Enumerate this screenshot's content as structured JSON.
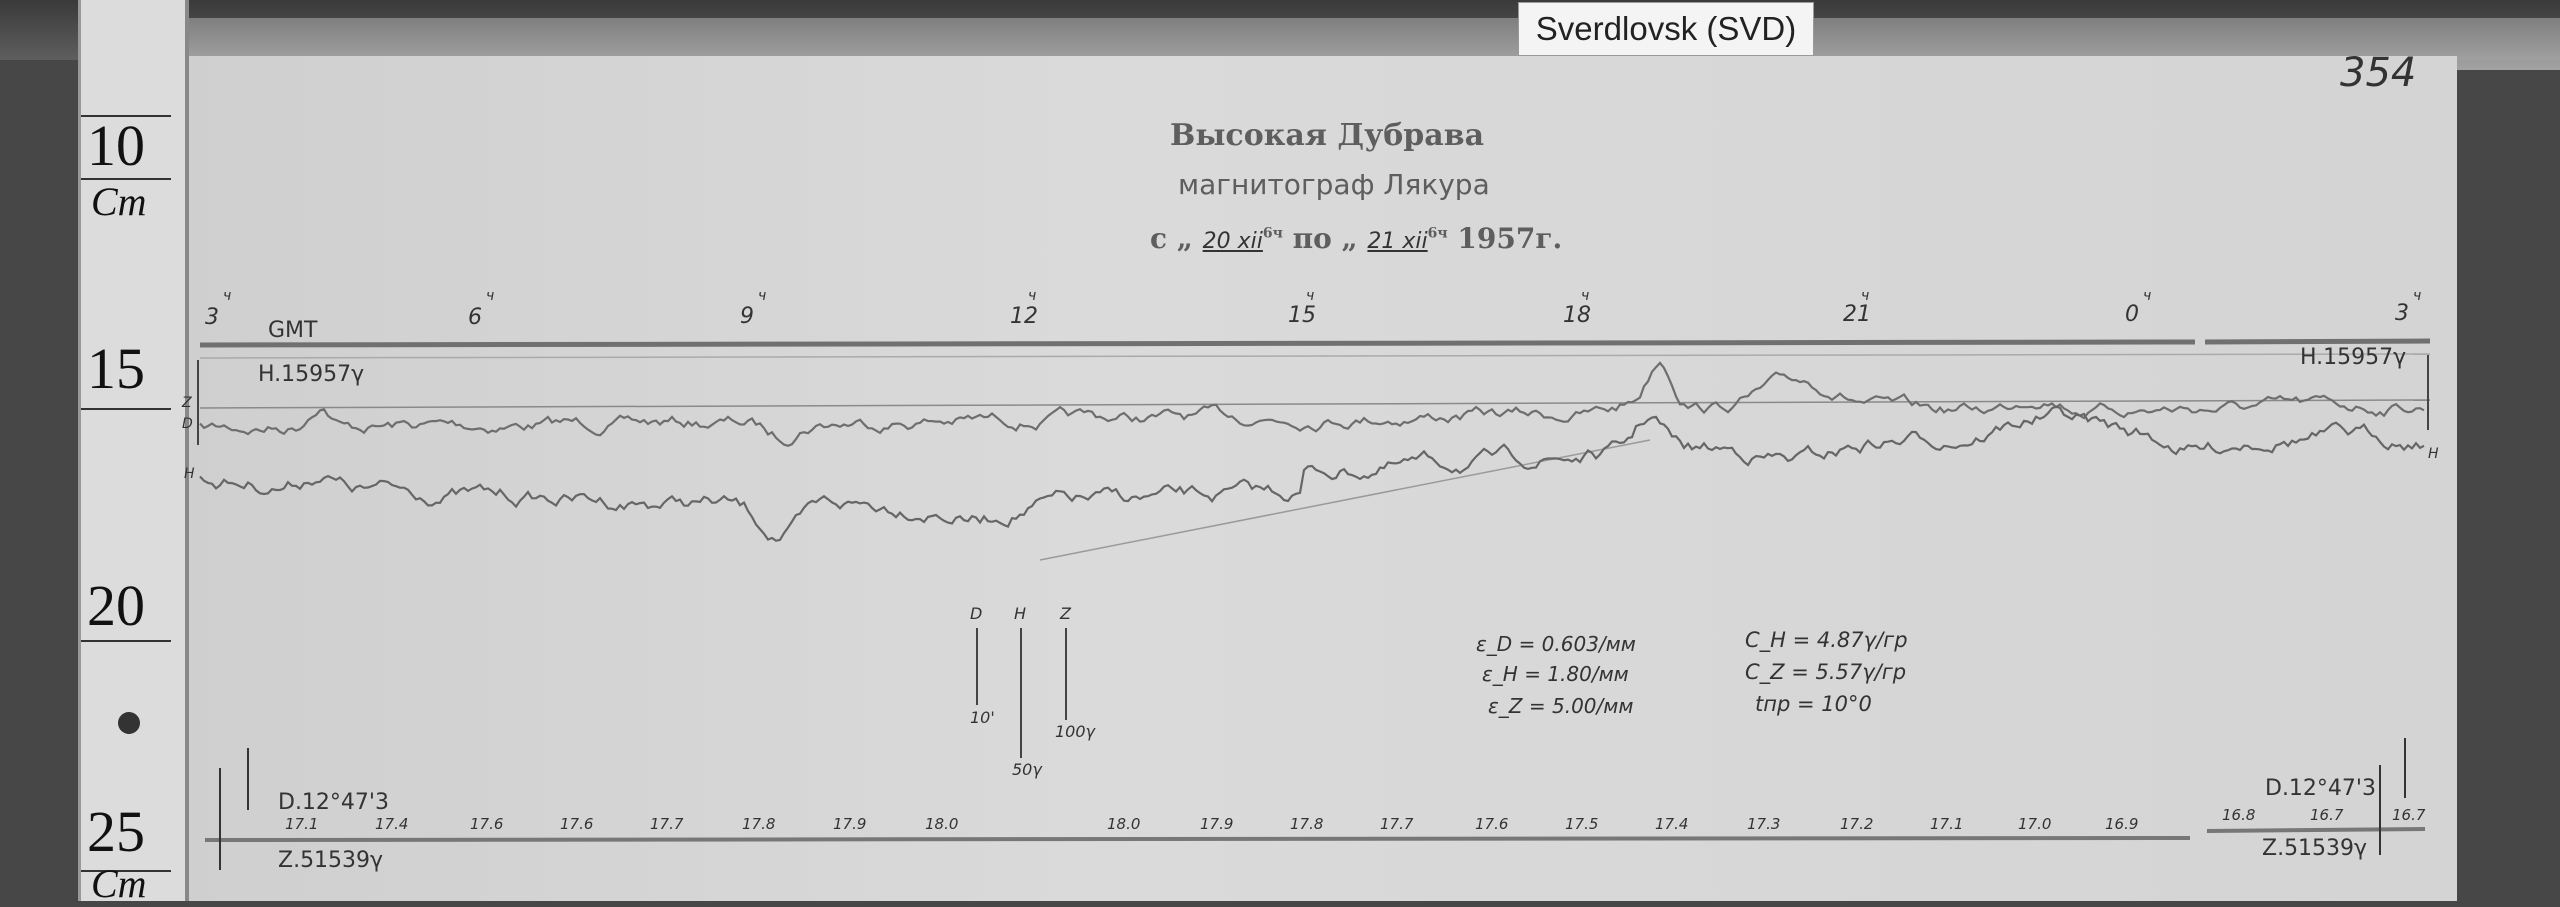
{
  "label_card": "Sverdlovsk (SVD)",
  "ruler": {
    "marks": [
      "10",
      "15",
      "20",
      "25"
    ],
    "unit": "Cm"
  },
  "sheet_number": "354",
  "header": {
    "station": "Высокая Дубрава",
    "instrument": "магнитограф Лякура",
    "date_from_prefix": "с „",
    "date_from": "20 xii",
    "date_from_hour": "6ч",
    "date_to_prefix": "по „",
    "date_to": "21 xii",
    "date_to_hour": "6ч",
    "year": "1957г."
  },
  "time_axis": {
    "label": "GMT",
    "hours": [
      "3",
      "6",
      "9",
      "12",
      "15",
      "18",
      "21",
      "0",
      "3"
    ],
    "hour_suffix": "ч"
  },
  "baselines": {
    "H_left": "H.15957γ",
    "H_right": "H.15957γ",
    "D_left": "D.12°47'3",
    "D_right": "D.12°47'3",
    "Z_left": "Z.51539γ",
    "Z_right": "Z.51539γ"
  },
  "trace_labels": {
    "z": "Z",
    "d": "D",
    "h": "H"
  },
  "scale_bars": [
    {
      "name": "D",
      "value": "10'"
    },
    {
      "name": "H",
      "value": "50γ"
    },
    {
      "name": "Z",
      "value": "100γ"
    }
  ],
  "constants": {
    "eps_d": "ε_D = 0.603/мм",
    "eps_h": "ε_H = 1.80/мм",
    "eps_z": "ε_Z = 5.00/мм",
    "c_h": "C_H = 4.87γ/гр",
    "c_z": "C_Z = 5.57γ/гр",
    "t": "tпр = 10°0"
  },
  "bottom_scale": [
    "17.1",
    "17.4",
    "17.6",
    "17.6",
    "17.7",
    "17.8",
    "17.9",
    "18.0",
    "18.0",
    "17.9",
    "17.8",
    "17.7",
    "17.6",
    "17.5",
    "17.4",
    "17.3",
    "17.2",
    "17.1",
    "17.0",
    "16.9",
    "16.8",
    "16.7",
    "16.7"
  ]
}
